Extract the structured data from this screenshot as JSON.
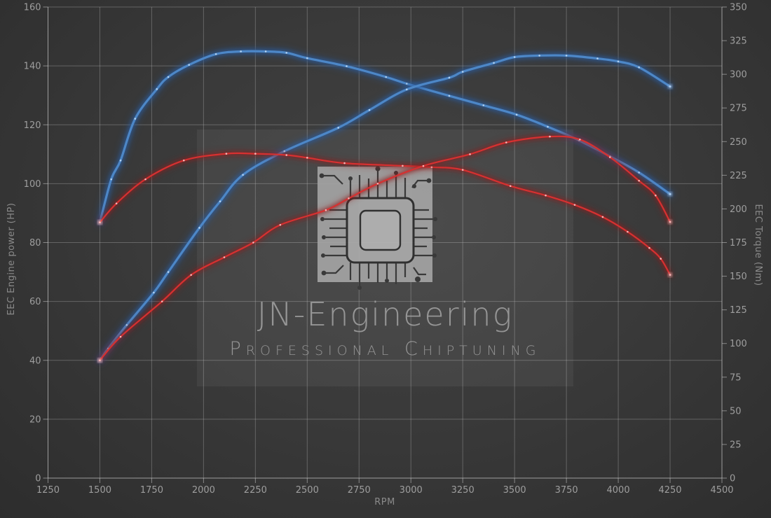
{
  "watermark": {
    "line1": "JN-Engineering",
    "line2": "Professional Chiptuning"
  },
  "chart_data": {
    "type": "line",
    "xlabel": "RPM",
    "ylabel_left": "EEC Engine power (HP)",
    "ylabel_right": "EEC Torque (Nm)",
    "xlim": [
      1250,
      4500
    ],
    "ylim_left": [
      0,
      160
    ],
    "ylim_right": [
      0,
      350
    ],
    "x_ticks": [
      1250,
      1500,
      1750,
      2000,
      2250,
      2500,
      2750,
      3000,
      3250,
      3500,
      3750,
      4000,
      4250,
      4500
    ],
    "left_ticks": [
      0,
      20,
      40,
      60,
      80,
      100,
      120,
      140,
      160
    ],
    "right_ticks": [
      0,
      25,
      50,
      75,
      100,
      125,
      150,
      175,
      200,
      225,
      250,
      275,
      300,
      325,
      350
    ],
    "grid": true,
    "legend": "none",
    "series": [
      {
        "name": "blue-torque-curve",
        "axis": "right",
        "unit": "Nm",
        "color": "#4d87c7",
        "glow": "#2b5c9e",
        "dot": "#bdd8f4",
        "points": [
          [
            1500,
            190
          ],
          [
            1555,
            222
          ],
          [
            1600,
            236
          ],
          [
            1670,
            267
          ],
          [
            1775,
            289
          ],
          [
            1830,
            298
          ],
          [
            1930,
            307
          ],
          [
            2060,
            315
          ],
          [
            2180,
            317
          ],
          [
            2300,
            317
          ],
          [
            2400,
            316
          ],
          [
            2500,
            312
          ],
          [
            2690,
            306
          ],
          [
            2880,
            298
          ],
          [
            2980,
            293
          ],
          [
            3185,
            284
          ],
          [
            3350,
            277
          ],
          [
            3510,
            270
          ],
          [
            3660,
            261
          ],
          [
            3810,
            251
          ],
          [
            3960,
            239
          ],
          [
            4100,
            227
          ],
          [
            4250,
            211
          ]
        ]
      },
      {
        "name": "blue-power-curve",
        "axis": "left",
        "unit": "HP",
        "color": "#4d87c7",
        "glow": "#2b5c9e",
        "dot": "#bdd8f4",
        "points": [
          [
            1500,
            40
          ],
          [
            1540,
            44
          ],
          [
            1630,
            52
          ],
          [
            1760,
            63
          ],
          [
            1830,
            70
          ],
          [
            1980,
            85
          ],
          [
            2080,
            94
          ],
          [
            2190,
            103
          ],
          [
            2390,
            111
          ],
          [
            2650,
            119
          ],
          [
            2800,
            125
          ],
          [
            2980,
            132
          ],
          [
            3185,
            136
          ],
          [
            3250,
            138
          ],
          [
            3400,
            141
          ],
          [
            3500,
            143
          ],
          [
            3620,
            143.5
          ],
          [
            3750,
            143.5
          ],
          [
            3900,
            142.5
          ],
          [
            4000,
            141.5
          ],
          [
            4100,
            139.5
          ],
          [
            4250,
            133
          ]
        ]
      },
      {
        "name": "red-torque-curve",
        "axis": "right",
        "unit": "Nm",
        "color": "#d63131",
        "glow": "#8f1d1d",
        "dot": "#ffc4c4",
        "points": [
          [
            1500,
            190
          ],
          [
            1580,
            204
          ],
          [
            1720,
            222
          ],
          [
            1905,
            236
          ],
          [
            2110,
            241
          ],
          [
            2250,
            241
          ],
          [
            2400,
            240
          ],
          [
            2500,
            238
          ],
          [
            2680,
            234
          ],
          [
            2960,
            232
          ],
          [
            3100,
            231
          ],
          [
            3250,
            229
          ],
          [
            3480,
            217
          ],
          [
            3650,
            210
          ],
          [
            3790,
            203
          ],
          [
            3925,
            194
          ],
          [
            4045,
            183
          ],
          [
            4150,
            171
          ],
          [
            4205,
            163
          ],
          [
            4250,
            151
          ]
        ]
      },
      {
        "name": "red-power-curve",
        "axis": "left",
        "unit": "HP",
        "color": "#d63131",
        "glow": "#8f1d1d",
        "dot": "#ffc4c4",
        "points": [
          [
            1500,
            40
          ],
          [
            1600,
            48
          ],
          [
            1800,
            60
          ],
          [
            1940,
            69
          ],
          [
            2100,
            75
          ],
          [
            2240,
            80
          ],
          [
            2370,
            86
          ],
          [
            2590,
            91
          ],
          [
            2700,
            95
          ],
          [
            2840,
            100
          ],
          [
            3060,
            106
          ],
          [
            3285,
            110
          ],
          [
            3460,
            114
          ],
          [
            3670,
            116
          ],
          [
            3815,
            115
          ],
          [
            3960,
            109
          ],
          [
            4100,
            101
          ],
          [
            4180,
            96
          ],
          [
            4250,
            87
          ]
        ]
      }
    ]
  }
}
